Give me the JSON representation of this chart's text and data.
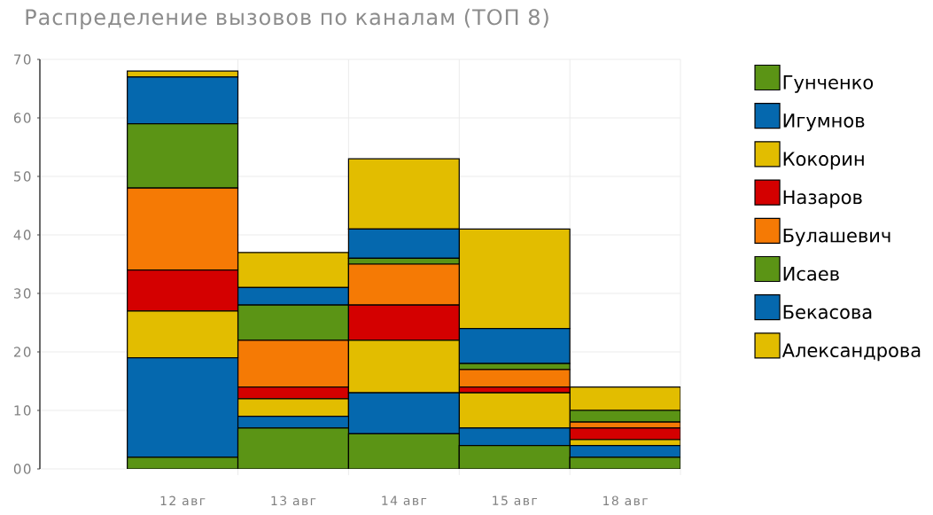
{
  "chart_data": {
    "type": "bar",
    "title": "Распределение вызовов по каналам (ТОП 8)",
    "categories": [
      "12 авг",
      "13 авг",
      "14 авг",
      "15 авг",
      "18 авг"
    ],
    "stacked": true,
    "series": [
      {
        "name": "Гунченко",
        "color": "#5b9415",
        "values": [
          2,
          7,
          6,
          4,
          2
        ]
      },
      {
        "name": "Игумнов",
        "color": "#0568ae",
        "values": [
          17,
          2,
          7,
          3,
          2
        ]
      },
      {
        "name": "Кокорин",
        "color": "#e2bd00",
        "values": [
          8,
          3,
          9,
          6,
          1
        ]
      },
      {
        "name": "Назаров",
        "color": "#d40000",
        "values": [
          7,
          2,
          6,
          1,
          2
        ]
      },
      {
        "name": "Булашевич",
        "color": "#f57a05",
        "values": [
          14,
          8,
          7,
          3,
          1
        ]
      },
      {
        "name": "Исаев",
        "color": "#5b9415",
        "values": [
          11,
          6,
          1,
          1,
          2
        ]
      },
      {
        "name": "Бекасова",
        "color": "#0568ae",
        "values": [
          8,
          3,
          5,
          6,
          0
        ]
      },
      {
        "name": "Александрова",
        "color": "#e2bd00",
        "values": [
          1,
          6,
          12,
          17,
          4
        ]
      }
    ],
    "ylim": [
      0,
      70
    ],
    "yticks": [
      {
        "value": 0,
        "label": "00"
      },
      10,
      20,
      30,
      40,
      50,
      60,
      70
    ],
    "grid": true,
    "legend": "right"
  }
}
